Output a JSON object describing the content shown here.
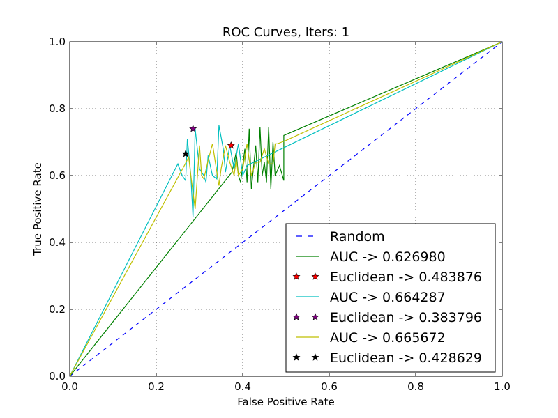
{
  "chart_data": {
    "type": "line",
    "title": "ROC Curves, Iters: 1",
    "xlabel": "False Positive Rate",
    "ylabel": "True Positive Rate",
    "xlim": [
      0.0,
      1.0
    ],
    "ylim": [
      0.0,
      1.0
    ],
    "xticks": [
      "0.0",
      "0.2",
      "0.4",
      "0.6",
      "0.8",
      "1.0"
    ],
    "yticks": [
      "0.0",
      "0.2",
      "0.4",
      "0.6",
      "0.8",
      "1.0"
    ],
    "grid": true,
    "legend_position": "lower-right",
    "series": [
      {
        "name": "Random",
        "kind": "line",
        "style": "dashed",
        "color": "#0000ff",
        "x": [
          0.0,
          1.0
        ],
        "y": [
          0.0,
          1.0
        ]
      },
      {
        "name": "AUC -> 0.626980",
        "kind": "line",
        "style": "solid",
        "color": "#008000",
        "x": [
          0.0,
          0.375,
          0.385,
          0.39,
          0.395,
          0.405,
          0.41,
          0.415,
          0.42,
          0.43,
          0.435,
          0.44,
          0.445,
          0.45,
          0.455,
          0.46,
          0.465,
          0.47,
          0.475,
          0.485,
          0.495,
          0.495,
          1.0
        ],
        "y": [
          0.0,
          0.61,
          0.67,
          0.6,
          0.58,
          0.68,
          0.58,
          0.74,
          0.56,
          0.69,
          0.58,
          0.745,
          0.6,
          0.64,
          0.58,
          0.745,
          0.56,
          0.7,
          0.6,
          0.63,
          0.585,
          0.72,
          1.0
        ]
      },
      {
        "name": "Euclidean -> 0.483876",
        "kind": "marker",
        "marker": "star",
        "color": "#ff0000",
        "x": [
          0.373
        ],
        "y": [
          0.69
        ]
      },
      {
        "name": "AUC -> 0.664287",
        "kind": "line",
        "style": "solid",
        "color": "#00bfbf",
        "x": [
          0.0,
          0.25,
          0.26,
          0.268,
          0.272,
          0.28,
          0.285,
          0.29,
          0.3,
          0.31,
          0.315,
          0.32,
          0.33,
          0.34,
          0.345,
          0.355,
          0.36,
          0.37,
          0.38,
          0.39,
          0.4,
          0.41,
          1.0
        ],
        "y": [
          0.0,
          0.635,
          0.6,
          0.585,
          0.71,
          0.6,
          0.475,
          0.74,
          0.62,
          0.6,
          0.58,
          0.66,
          0.6,
          0.59,
          0.75,
          0.68,
          0.61,
          0.69,
          0.62,
          0.695,
          0.6,
          0.63,
          1.0
        ]
      },
      {
        "name": "Euclidean -> 0.383796",
        "kind": "marker",
        "marker": "star",
        "color": "#800080",
        "x": [
          0.285
        ],
        "y": [
          0.74
        ]
      },
      {
        "name": "AUC -> 0.665672",
        "kind": "line",
        "style": "solid",
        "color": "#bfbf00",
        "x": [
          0.0,
          0.265,
          0.275,
          0.28,
          0.29,
          0.3,
          0.305,
          0.31,
          0.32,
          0.33,
          0.345,
          0.35,
          0.36,
          0.37,
          0.38,
          0.385,
          0.39,
          0.4,
          0.41,
          0.42,
          0.43,
          0.44,
          0.45,
          0.46,
          0.47,
          0.475,
          0.48,
          0.49,
          0.5,
          1.0
        ],
        "y": [
          0.0,
          0.63,
          0.655,
          0.6,
          0.5,
          0.69,
          0.6,
          0.59,
          0.645,
          0.695,
          0.57,
          0.62,
          0.69,
          0.64,
          0.6,
          0.65,
          0.6,
          0.62,
          0.695,
          0.6,
          0.64,
          0.64,
          0.68,
          0.635,
          0.635,
          0.695,
          0.695,
          0.7,
          0.705,
          1.0
        ]
      },
      {
        "name": "Euclidean -> 0.428629",
        "kind": "marker",
        "marker": "star",
        "color": "#000000",
        "x": [
          0.268
        ],
        "y": [
          0.665
        ]
      }
    ]
  }
}
